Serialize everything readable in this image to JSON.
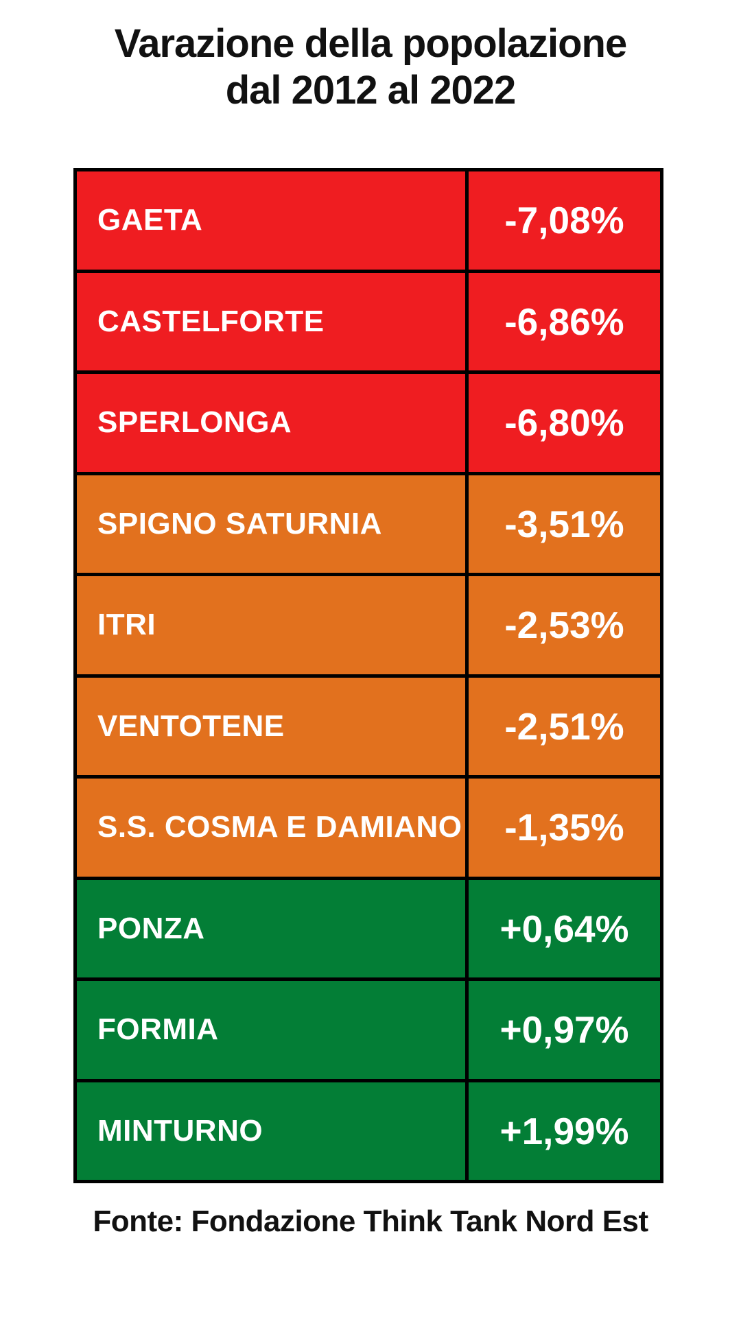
{
  "title": {
    "line1": "Varazione della popolazione",
    "line2": "dal 2012 al 2022"
  },
  "footer": {
    "source": "Fonte: Fondazione Think Tank Nord Est"
  },
  "colors": {
    "red": "#EF1D21",
    "orange": "#E2711E",
    "green": "#037E36",
    "border": "#000000",
    "text_light": "#FFFFFF",
    "text_dark": "#111111"
  },
  "table": {
    "rows": [
      {
        "name": "GAETA",
        "value": "-7,08%",
        "color": "red"
      },
      {
        "name": "CASTELFORTE",
        "value": "-6,86%",
        "color": "red"
      },
      {
        "name": "SPERLONGA",
        "value": "-6,80%",
        "color": "red"
      },
      {
        "name": "SPIGNO SATURNIA",
        "value": "-3,51%",
        "color": "orange"
      },
      {
        "name": "ITRI",
        "value": "-2,53%",
        "color": "orange"
      },
      {
        "name": "VENTOTENE",
        "value": "-2,51%",
        "color": "orange"
      },
      {
        "name": "S.S. COSMA E DAMIANO",
        "value": "-1,35%",
        "color": "orange"
      },
      {
        "name": "PONZA",
        "value": "+0,64%",
        "color": "green"
      },
      {
        "name": "FORMIA",
        "value": "+0,97%",
        "color": "green"
      },
      {
        "name": "MINTURNO",
        "value": "+1,99%",
        "color": "green"
      }
    ]
  },
  "chart_data": {
    "type": "table",
    "title": "Varazione della popolazione dal 2012 al 2022",
    "categories": [
      "GAETA",
      "CASTELFORTE",
      "SPERLONGA",
      "SPIGNO SATURNIA",
      "ITRI",
      "VENTOTENE",
      "S.S. COSMA E DAMIANO",
      "PONZA",
      "FORMIA",
      "MINTURNO"
    ],
    "values_percent": [
      -7.08,
      -6.86,
      -6.8,
      -3.51,
      -2.53,
      -2.51,
      -1.35,
      0.64,
      0.97,
      1.99
    ],
    "value_labels": [
      "-7,08%",
      "-6,86%",
      "-6,80%",
      "-3,51%",
      "-2,53%",
      "-2,51%",
      "-1,35%",
      "+0,64%",
      "+0,97%",
      "+1,99%"
    ],
    "row_colors": [
      "red",
      "red",
      "red",
      "orange",
      "orange",
      "orange",
      "orange",
      "green",
      "green",
      "green"
    ],
    "source": "Fonte: Fondazione Think Tank Nord Est"
  }
}
